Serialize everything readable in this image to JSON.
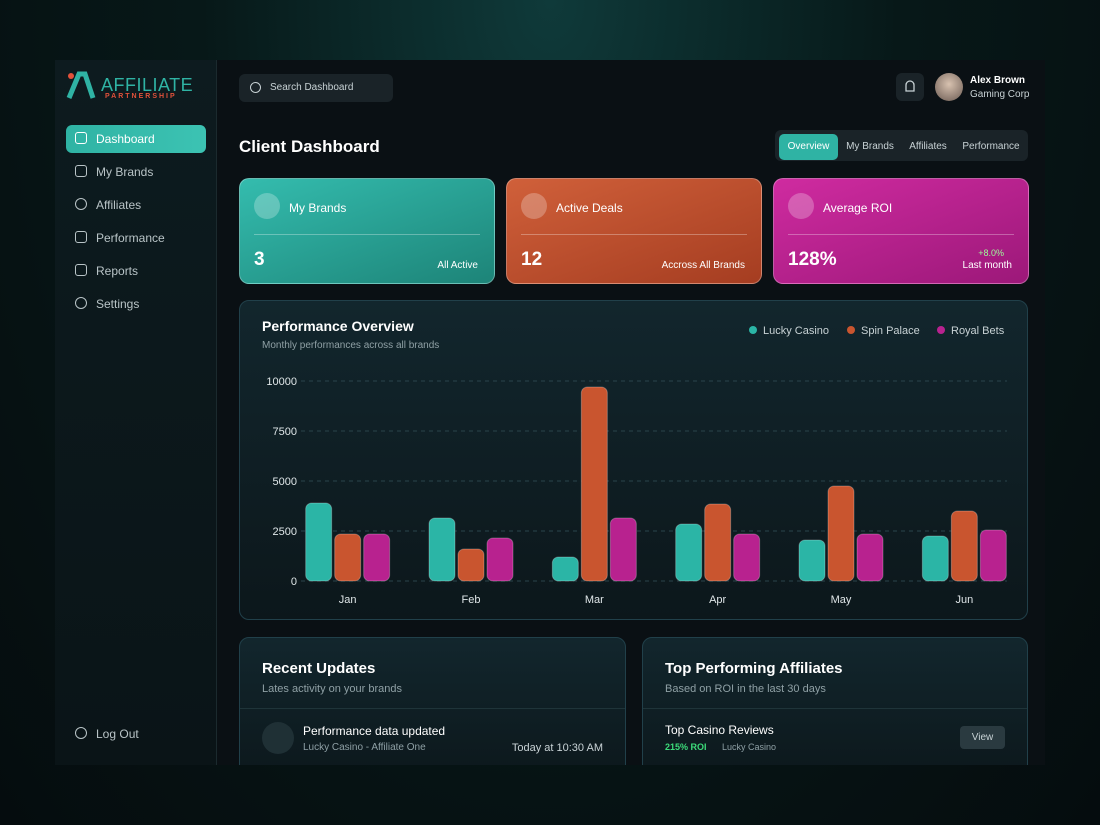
{
  "sidebar": {
    "logo": {
      "title": "AFFILIATE",
      "subtitle": "PARTNERSHIP"
    },
    "nav": [
      "Dashboard",
      "My Brands",
      "Affiliates",
      "Performance",
      "Reports",
      "Settings"
    ],
    "logout": "Log Out"
  },
  "header": {
    "search_placeholder": "Search Dashboard",
    "user": {
      "name": "Alex Brown",
      "company": "Gaming Corp"
    }
  },
  "page": {
    "title": "Client Dashboard",
    "tabs": [
      "Overview",
      "My Brands",
      "Affiliates",
      "Performance"
    ]
  },
  "cards": [
    {
      "label": "My Brands",
      "value": "3",
      "note": "All Active"
    },
    {
      "label": "Active Deals",
      "value": "12",
      "note": "Accross All Brands"
    },
    {
      "label": "Average ROI",
      "value": "128%",
      "change": "+8.0%",
      "note": "Last month"
    }
  ],
  "chart_data": {
    "type": "bar",
    "title": "Performance Overview",
    "subtitle": "Monthly performances across all brands",
    "categories": [
      "Jan",
      "Feb",
      "Mar",
      "Apr",
      "May",
      "Jun"
    ],
    "series": [
      {
        "name": "Lucky Casino",
        "color": "#2bb5a6",
        "values": [
          3900,
          3150,
          1200,
          2850,
          2050,
          2250
        ]
      },
      {
        "name": "Spin Palace",
        "color": "#c9552f",
        "values": [
          2350,
          1600,
          9700,
          3850,
          4750,
          3500
        ]
      },
      {
        "name": "Royal Bets",
        "color": "#b8228f",
        "values": [
          2350,
          2150,
          3150,
          2350,
          2350,
          2550
        ]
      }
    ],
    "ylim": [
      0,
      10000
    ],
    "yticks": [
      0,
      2500,
      5000,
      7500,
      10000
    ],
    "grid": true
  },
  "recent_updates": {
    "title": "Recent Updates",
    "subtitle": "Lates activity on your brands",
    "items": [
      {
        "title": "Performance data updated",
        "detail": "Lucky Casino - Affiliate One",
        "time": "Today at 10:30 AM"
      }
    ]
  },
  "top_affiliates": {
    "title": "Top Performing Affiliates",
    "subtitle": "Based on ROI in the last 30 days",
    "items": [
      {
        "name": "Top Casino Reviews",
        "roi": "215% ROI",
        "brand": "Lucky Casino",
        "action": "View"
      }
    ]
  }
}
